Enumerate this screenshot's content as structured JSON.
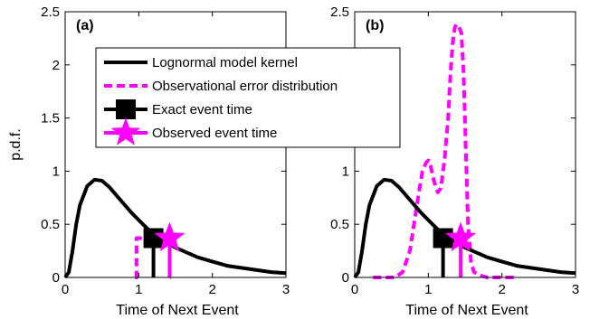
{
  "chart_data": [
    {
      "type": "line",
      "panel_label": "(a)",
      "xlabel": "Time of Next Event",
      "ylabel": "p.d.f.",
      "xlim": [
        0,
        3
      ],
      "ylim": [
        0,
        2.5
      ],
      "x_ticks": [
        "0",
        "1",
        "2",
        "3"
      ],
      "y_ticks": [
        "0",
        "0.5",
        "1",
        "1.5",
        "2",
        "2.5"
      ],
      "grid": false,
      "legend_position": "upper-center",
      "series": [
        {
          "name": "Lognormal model kernel",
          "style": "solid",
          "color": "#000000",
          "x": [
            0,
            0.05,
            0.1,
            0.15,
            0.2,
            0.3,
            0.4,
            0.5,
            0.6,
            0.7,
            0.8,
            0.9,
            1.0,
            1.1,
            1.2,
            1.3,
            1.4,
            1.5,
            1.6,
            1.8,
            2.0,
            2.2,
            2.5,
            2.8,
            3.0
          ],
          "y": [
            0,
            0.05,
            0.25,
            0.5,
            0.68,
            0.86,
            0.92,
            0.91,
            0.85,
            0.77,
            0.69,
            0.61,
            0.54,
            0.47,
            0.41,
            0.36,
            0.32,
            0.28,
            0.25,
            0.19,
            0.15,
            0.11,
            0.08,
            0.05,
            0.04
          ]
        },
        {
          "name": "Observational error distribution",
          "style": "dashed",
          "color": "#ff00ff",
          "x": [
            0.95,
            0.97,
            0.97,
            1.42,
            1.42,
            1.44
          ],
          "y": [
            0,
            0,
            0.37,
            0.37,
            0,
            0
          ]
        }
      ],
      "markers": [
        {
          "name": "Exact event time",
          "x": 1.2,
          "y": 0.37,
          "shape": "square",
          "color": "#000000"
        },
        {
          "name": "Observed event time",
          "x": 1.42,
          "y": 0.37,
          "shape": "star",
          "color": "#ff00ff"
        }
      ]
    },
    {
      "type": "line",
      "panel_label": "(b)",
      "xlabel": "Time of Next Event",
      "ylabel": "",
      "xlim": [
        0,
        3
      ],
      "ylim": [
        0,
        2.5
      ],
      "x_ticks": [
        "0",
        "1",
        "2",
        "3"
      ],
      "y_ticks": [
        "0",
        "0.5",
        "1",
        "1.5",
        "2",
        "2.5"
      ],
      "grid": false,
      "series": [
        {
          "name": "Lognormal model kernel",
          "style": "solid",
          "color": "#000000",
          "x": [
            0,
            0.05,
            0.1,
            0.15,
            0.2,
            0.3,
            0.4,
            0.5,
            0.6,
            0.7,
            0.8,
            0.9,
            1.0,
            1.1,
            1.2,
            1.3,
            1.4,
            1.5,
            1.6,
            1.8,
            2.0,
            2.2,
            2.5,
            2.8,
            3.0
          ],
          "y": [
            0,
            0.05,
            0.25,
            0.5,
            0.68,
            0.86,
            0.92,
            0.91,
            0.85,
            0.77,
            0.69,
            0.61,
            0.54,
            0.47,
            0.41,
            0.36,
            0.32,
            0.28,
            0.25,
            0.19,
            0.15,
            0.11,
            0.08,
            0.05,
            0.04
          ]
        },
        {
          "name": "Observational error distribution",
          "style": "dashed",
          "color": "#ff00ff",
          "x": [
            0.25,
            0.4,
            0.55,
            0.65,
            0.75,
            0.85,
            0.92,
            0.97,
            1.0,
            1.03,
            1.08,
            1.13,
            1.17,
            1.22,
            1.27,
            1.3,
            1.33,
            1.36,
            1.38,
            1.41,
            1.45,
            1.48,
            1.51,
            1.54,
            1.58,
            1.62,
            1.7,
            1.8,
            2.0,
            2.2
          ],
          "y": [
            0,
            0,
            0,
            0.05,
            0.25,
            0.7,
            1.0,
            1.08,
            1.1,
            1.05,
            0.9,
            0.8,
            0.84,
            1.1,
            1.5,
            1.9,
            2.2,
            2.35,
            2.38,
            2.37,
            2.3,
            1.9,
            1.2,
            0.5,
            0.15,
            0.05,
            0.02,
            0,
            0,
            0
          ]
        }
      ],
      "markers": [
        {
          "name": "Exact event time",
          "x": 1.2,
          "y": 0.37,
          "shape": "square",
          "color": "#000000"
        },
        {
          "name": "Observed event time",
          "x": 1.44,
          "y": 0.37,
          "shape": "star",
          "color": "#ff00ff"
        }
      ]
    }
  ]
}
